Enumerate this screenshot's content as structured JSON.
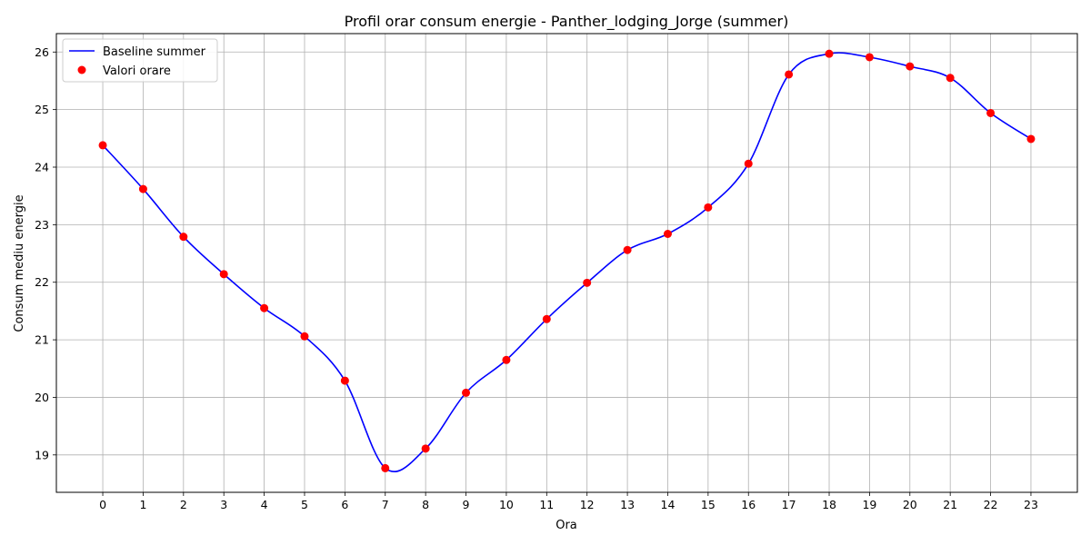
{
  "chart_data": {
    "type": "line",
    "title": "Profil orar consum energie - Panther_lodging_Jorge (summer)",
    "xlabel": "Ora",
    "ylabel": "Consum mediu energie",
    "x": [
      0,
      1,
      2,
      3,
      4,
      5,
      6,
      7,
      8,
      9,
      10,
      11,
      12,
      13,
      14,
      15,
      16,
      17,
      18,
      19,
      20,
      21,
      22,
      23
    ],
    "series": [
      {
        "name": "Baseline summer",
        "kind": "line",
        "color": "#0000ff",
        "values": [
          24.38,
          23.62,
          22.79,
          22.14,
          21.55,
          21.06,
          20.29,
          18.77,
          19.11,
          20.08,
          20.65,
          21.36,
          21.99,
          22.56,
          22.84,
          23.3,
          24.06,
          25.61,
          25.97,
          25.91,
          25.75,
          25.55,
          24.94,
          24.49
        ]
      },
      {
        "name": "Valori orare",
        "kind": "scatter",
        "color": "#ff0000",
        "values": [
          24.38,
          23.62,
          22.79,
          22.14,
          21.55,
          21.06,
          20.29,
          18.77,
          19.11,
          20.08,
          20.65,
          21.36,
          21.99,
          22.56,
          22.84,
          23.3,
          24.06,
          25.61,
          25.97,
          25.91,
          25.75,
          25.55,
          24.94,
          24.49
        ]
      }
    ],
    "xticks": [
      "0",
      "1",
      "2",
      "3",
      "4",
      "5",
      "6",
      "7",
      "8",
      "9",
      "10",
      "11",
      "12",
      "13",
      "14",
      "15",
      "16",
      "17",
      "18",
      "19",
      "20",
      "21",
      "22",
      "23"
    ],
    "yticks": [
      19,
      20,
      21,
      22,
      23,
      24,
      25,
      26
    ],
    "xlim": [
      -1.15,
      24.15
    ],
    "ylim": [
      18.35,
      26.32
    ],
    "grid": true,
    "legend_position": "top-left"
  }
}
